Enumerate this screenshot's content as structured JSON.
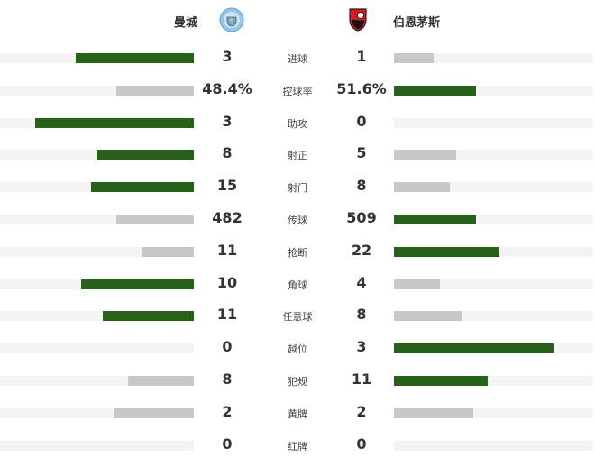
{
  "home": {
    "name": "曼城",
    "logo": "manchester-city-crest"
  },
  "away": {
    "name": "伯恩茅斯",
    "logo": "bournemouth-crest"
  },
  "colors": {
    "leader": "#28611a",
    "other": "#c8c8c8",
    "track": "#f4f4f4"
  },
  "stats": [
    {
      "label": "进球",
      "home": "3",
      "away": "1",
      "home_fill": 0.61,
      "away_fill": 0.2,
      "lead": "home"
    },
    {
      "label": "控球率",
      "home": "48.4%",
      "away": "51.6%",
      "home_fill": 0.4,
      "away_fill": 0.41,
      "lead": "away"
    },
    {
      "label": "助攻",
      "home": "3",
      "away": "0",
      "home_fill": 0.82,
      "away_fill": 0,
      "lead": "home"
    },
    {
      "label": "射正",
      "home": "8",
      "away": "5",
      "home_fill": 0.5,
      "away_fill": 0.31,
      "lead": "home"
    },
    {
      "label": "射门",
      "home": "15",
      "away": "8",
      "home_fill": 0.53,
      "away_fill": 0.28,
      "lead": "home"
    },
    {
      "label": "传球",
      "home": "482",
      "away": "509",
      "home_fill": 0.4,
      "away_fill": 0.41,
      "lead": "away"
    },
    {
      "label": "抢断",
      "home": "11",
      "away": "22",
      "home_fill": 0.27,
      "away_fill": 0.53,
      "lead": "away"
    },
    {
      "label": "角球",
      "home": "10",
      "away": "4",
      "home_fill": 0.58,
      "away_fill": 0.23,
      "lead": "home"
    },
    {
      "label": "任意球",
      "home": "11",
      "away": "8",
      "home_fill": 0.47,
      "away_fill": 0.34,
      "lead": "home"
    },
    {
      "label": "越位",
      "home": "0",
      "away": "3",
      "home_fill": 0,
      "away_fill": 0.8,
      "lead": "away"
    },
    {
      "label": "犯规",
      "home": "8",
      "away": "11",
      "home_fill": 0.34,
      "away_fill": 0.47,
      "lead": "away"
    },
    {
      "label": "黄牌",
      "home": "2",
      "away": "2",
      "home_fill": 0.41,
      "away_fill": 0.4,
      "lead": "none"
    },
    {
      "label": "红牌",
      "home": "0",
      "away": "0",
      "home_fill": 0,
      "away_fill": 0,
      "lead": "none"
    }
  ]
}
